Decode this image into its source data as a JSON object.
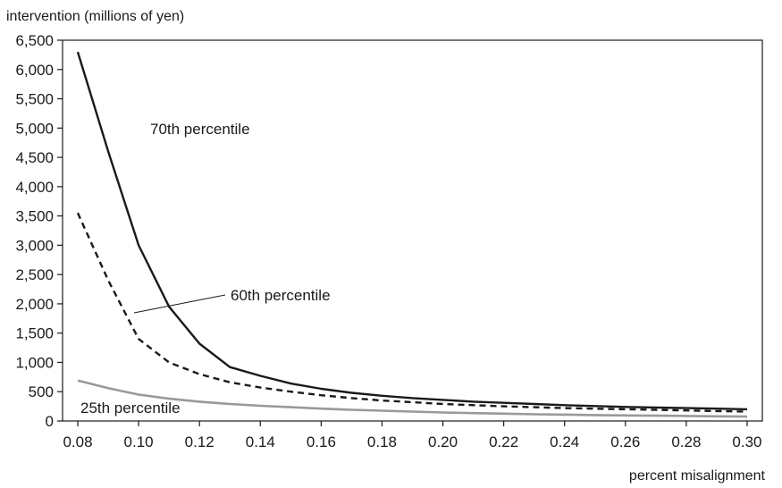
{
  "chart_data": {
    "type": "line",
    "title": "",
    "ylabel": "intervention (millions of yen)",
    "xlabel": "percent misalignment",
    "xlim": [
      0.075,
      0.305
    ],
    "ylim": [
      0,
      6500
    ],
    "x_ticks": [
      0.08,
      0.1,
      0.12,
      0.14,
      0.16,
      0.18,
      0.2,
      0.22,
      0.24,
      0.26,
      0.28,
      0.3
    ],
    "x_tick_labels": [
      "0.08",
      "0.10",
      "0.12",
      "0.14",
      "0.16",
      "0.18",
      "0.20",
      "0.22",
      "0.24",
      "0.26",
      "0.28",
      "0.30"
    ],
    "y_ticks": [
      0,
      500,
      1000,
      1500,
      2000,
      2500,
      3000,
      3500,
      4000,
      4500,
      5000,
      5500,
      6000,
      6500
    ],
    "y_tick_labels": [
      "0",
      "500",
      "1,000",
      "1,500",
      "2,000",
      "2,500",
      "3,000",
      "3,500",
      "4,000",
      "4,500",
      "5,000",
      "5,500",
      "6,000",
      "6,500"
    ],
    "grid": false,
    "legend": "none",
    "x": [
      0.08,
      0.09,
      0.1,
      0.11,
      0.12,
      0.13,
      0.14,
      0.15,
      0.16,
      0.17,
      0.18,
      0.19,
      0.2,
      0.21,
      0.22,
      0.23,
      0.24,
      0.25,
      0.26,
      0.27,
      0.28,
      0.29,
      0.3
    ],
    "series": [
      {
        "label": "70th percentile",
        "color": "#1a1a1a",
        "dash": "solid",
        "values": [
          6300,
          4600,
          3000,
          1950,
          1320,
          920,
          770,
          640,
          550,
          480,
          430,
          390,
          360,
          330,
          310,
          290,
          270,
          255,
          240,
          230,
          220,
          210,
          200
        ]
      },
      {
        "label": "60th percentile",
        "color": "#1a1a1a",
        "dash": "dashed",
        "values": [
          3550,
          2400,
          1400,
          1000,
          800,
          660,
          570,
          500,
          440,
          390,
          350,
          320,
          290,
          270,
          250,
          235,
          220,
          210,
          200,
          190,
          180,
          170,
          160
        ]
      },
      {
        "label": "25th percentile",
        "color": "#999999",
        "dash": "solid",
        "values": [
          690,
          560,
          450,
          380,
          330,
          290,
          260,
          235,
          210,
          190,
          175,
          160,
          145,
          135,
          125,
          115,
          108,
          100,
          95,
          90,
          85,
          80,
          75
        ]
      }
    ]
  }
}
